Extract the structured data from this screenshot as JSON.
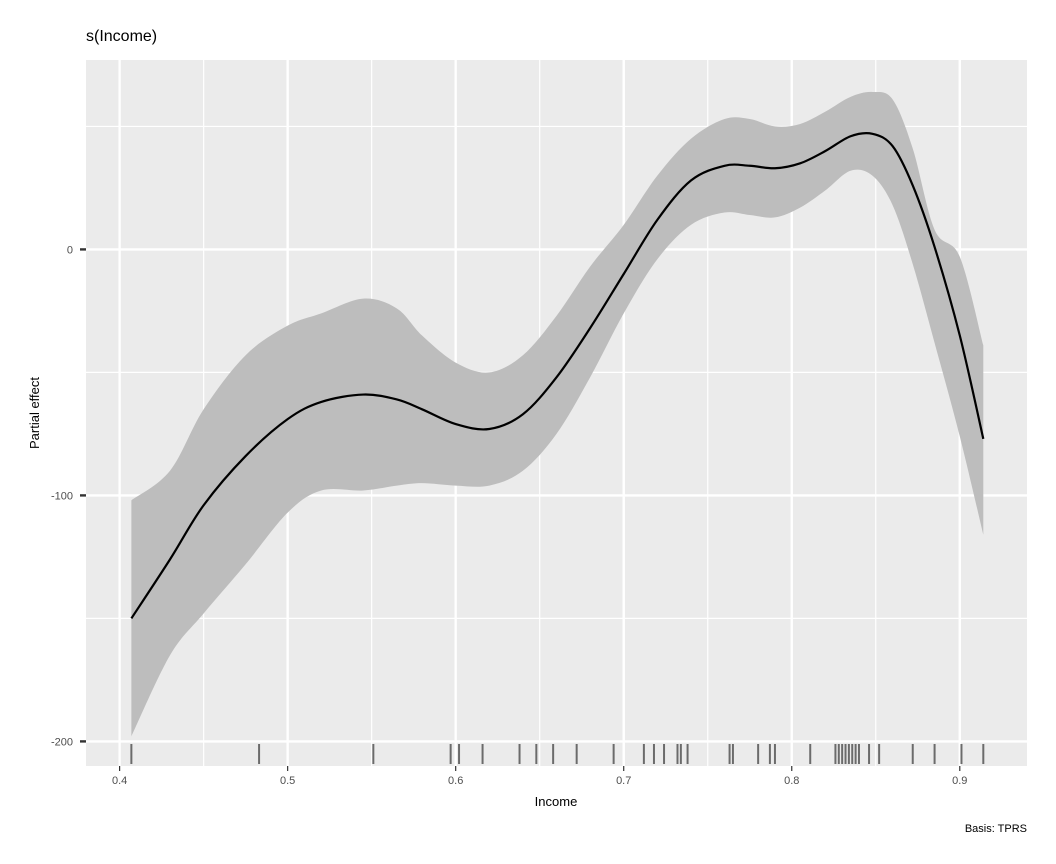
{
  "chart_data": {
    "type": "line",
    "title": "s(Income)",
    "xlabel": "Income",
    "ylabel": "Partial effect",
    "caption": "Basis: TPRS",
    "xlim": [
      0.38,
      0.94
    ],
    "ylim": [
      -210,
      77
    ],
    "x_ticks": [
      0.4,
      0.5,
      0.6,
      0.7,
      0.8,
      0.9
    ],
    "x_tick_labels": [
      "0.4",
      "0.5",
      "0.6",
      "0.7",
      "0.8",
      "0.9"
    ],
    "y_ticks": [
      0,
      -100,
      -200
    ],
    "y_tick_labels": [
      "0",
      "-100",
      "-200"
    ],
    "grid": true,
    "colors": {
      "panel": "#ebebeb",
      "grid": "#ffffff",
      "ribbon": "#bdbdbd",
      "line": "#000000",
      "rug": "#555555"
    },
    "series": [
      {
        "x": [
          0.407,
          0.43,
          0.45,
          0.475,
          0.5,
          0.52,
          0.545,
          0.565,
          0.58,
          0.6,
          0.62,
          0.64,
          0.66,
          0.68,
          0.7,
          0.72,
          0.74,
          0.76,
          0.775,
          0.79,
          0.805,
          0.82,
          0.835,
          0.848,
          0.86,
          0.872,
          0.885,
          0.9,
          0.914
        ],
        "y": [
          -150,
          -126,
          -104,
          -84,
          -69,
          -62,
          -59,
          -61,
          -65,
          -71,
          -73,
          -67,
          -52,
          -32,
          -10,
          12,
          28,
          34,
          34,
          33,
          35,
          40,
          46,
          47,
          42,
          26,
          1,
          -35,
          -77
        ],
        "lower": [
          -198,
          -165,
          -148,
          -128,
          -107,
          -98,
          -98,
          -96,
          -95,
          -96,
          -96,
          -90,
          -75,
          -52,
          -26,
          -4,
          10,
          15,
          14,
          13,
          17,
          24,
          32,
          30,
          18,
          -6,
          -38,
          -76,
          -116
        ],
        "upper": [
          -102,
          -90,
          -65,
          -43,
          -31,
          -26,
          -20,
          -24,
          -35,
          -46,
          -50,
          -43,
          -27,
          -7,
          10,
          30,
          45,
          53,
          53,
          50,
          51,
          56,
          62,
          64,
          61,
          41,
          8,
          -3,
          -39
        ]
      }
    ],
    "rug": [
      0.407,
      0.483,
      0.551,
      0.597,
      0.602,
      0.616,
      0.638,
      0.648,
      0.658,
      0.672,
      0.694,
      0.712,
      0.718,
      0.724,
      0.732,
      0.734,
      0.738,
      0.763,
      0.765,
      0.78,
      0.787,
      0.79,
      0.811,
      0.826,
      0.828,
      0.83,
      0.832,
      0.834,
      0.836,
      0.838,
      0.84,
      0.846,
      0.852,
      0.872,
      0.885,
      0.901,
      0.914
    ]
  }
}
